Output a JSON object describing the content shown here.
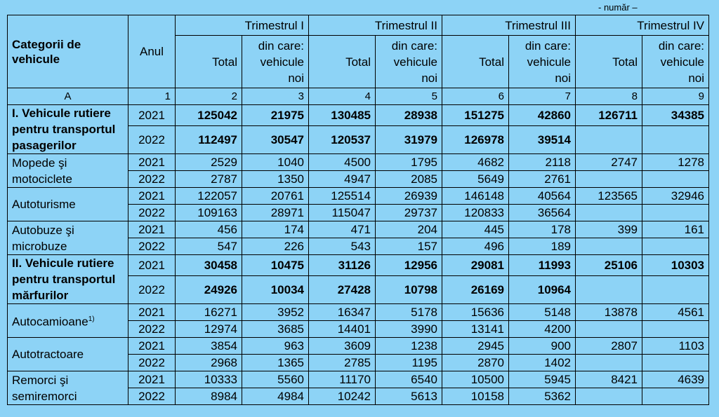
{
  "unit_note": "- număr –",
  "header": {
    "category": "Categorii de vehicule",
    "year": "Anul",
    "quarters": [
      "Trimestrul I",
      "Trimestrul II",
      "Trimestrul III",
      "Trimestrul IV"
    ],
    "total": "Total",
    "new": "din care: vehicule noi"
  },
  "column_numbers": [
    "A",
    "1",
    "2",
    "3",
    "4",
    "5",
    "6",
    "7",
    "8",
    "9"
  ],
  "groups": [
    {
      "category": "I. Vehicule rutiere pentru transportul pasagerilor",
      "bold": true,
      "rows": [
        {
          "year": "2021",
          "values": [
            "125042",
            "21975",
            "130485",
            "28938",
            "151275",
            "42860",
            "126711",
            "34385"
          ]
        },
        {
          "year": "2022",
          "values": [
            "112497",
            "30547",
            "120537",
            "31979",
            "126978",
            "39514",
            "",
            ""
          ]
        }
      ]
    },
    {
      "category": "Mopede şi motociclete",
      "bold": false,
      "rows": [
        {
          "year": "2021",
          "values": [
            "2529",
            "1040",
            "4500",
            "1795",
            "4682",
            "2118",
            "2747",
            "1278"
          ]
        },
        {
          "year": "2022",
          "values": [
            "2787",
            "1350",
            "4947",
            "2085",
            "5649",
            "2761",
            "",
            ""
          ]
        }
      ]
    },
    {
      "category": "Autoturisme",
      "bold": false,
      "rows": [
        {
          "year": "2021",
          "values": [
            "122057",
            "20761",
            "125514",
            "26939",
            "146148",
            "40564",
            "123565",
            "32946"
          ]
        },
        {
          "year": "2022",
          "values": [
            "109163",
            "28971",
            "115047",
            "29737",
            "120833",
            "36564",
            "",
            ""
          ]
        }
      ]
    },
    {
      "category": "Autobuze şi microbuze",
      "bold": false,
      "rows": [
        {
          "year": "2021",
          "values": [
            "456",
            "174",
            "471",
            "204",
            "445",
            "178",
            "399",
            "161"
          ]
        },
        {
          "year": "2022",
          "values": [
            "547",
            "226",
            "543",
            "157",
            "496",
            "189",
            "",
            ""
          ]
        }
      ]
    },
    {
      "category": "II. Vehicule rutiere pentru transportul mărfurilor",
      "bold": true,
      "rows": [
        {
          "year": "2021",
          "values": [
            "30458",
            "10475",
            "31126",
            "12956",
            "29081",
            "11993",
            "25106",
            "10303"
          ]
        },
        {
          "year": "2022",
          "values": [
            "24926",
            "10034",
            "27428",
            "10798",
            "26169",
            "10964",
            "",
            ""
          ]
        }
      ]
    },
    {
      "category": "Autocamioane",
      "footnote": "1)",
      "bold": false,
      "rows": [
        {
          "year": "2021",
          "values": [
            "16271",
            "3952",
            "16347",
            "5178",
            "15636",
            "5148",
            "13878",
            "4561"
          ]
        },
        {
          "year": "2022",
          "values": [
            "12974",
            "3685",
            "14401",
            "3990",
            "13141",
            "4200",
            "",
            ""
          ]
        }
      ]
    },
    {
      "category": "Autotractoare",
      "bold": false,
      "rows": [
        {
          "year": "2021",
          "values": [
            "3854",
            "963",
            "3609",
            "1238",
            "2945",
            "900",
            "2807",
            "1103"
          ]
        },
        {
          "year": "2022",
          "values": [
            "2968",
            "1365",
            "2785",
            "1195",
            "2870",
            "1402",
            "",
            ""
          ]
        }
      ]
    },
    {
      "category": "Remorci şi semiremorci",
      "bold": false,
      "rows": [
        {
          "year": "2021",
          "values": [
            "10333",
            "5560",
            "11170",
            "6540",
            "10500",
            "5945",
            "8421",
            "4639"
          ]
        },
        {
          "year": "2022",
          "values": [
            "8984",
            "4984",
            "10242",
            "5613",
            "10158",
            "5362",
            "",
            ""
          ]
        }
      ]
    }
  ]
}
